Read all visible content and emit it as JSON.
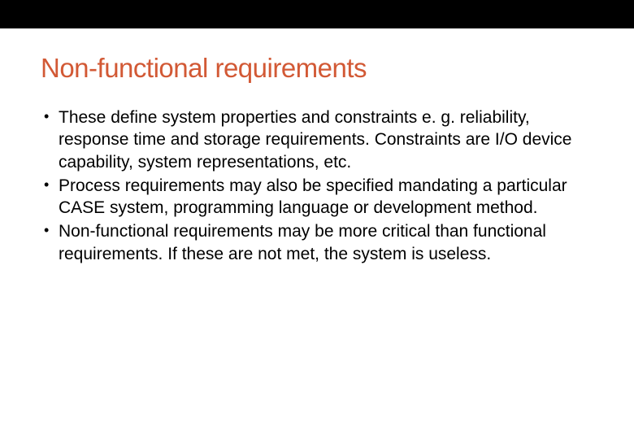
{
  "slide": {
    "title": "Non-functional requirements",
    "title_color": "#d25935",
    "title_fontsize": 33,
    "bullets": [
      "These define system properties and constraints e. g. reliability, response time and storage requirements. Constraints are I/O device capability, system representations, etc.",
      "Process requirements may also be specified mandating a particular CASE system, programming language or development method.",
      "Non-functional requirements may be more critical than functional requirements. If these are not met, the system is useless."
    ],
    "body_fontsize": 21,
    "body_color": "#000000",
    "background_color": "#ffffff",
    "top_bar_color": "#000000"
  }
}
